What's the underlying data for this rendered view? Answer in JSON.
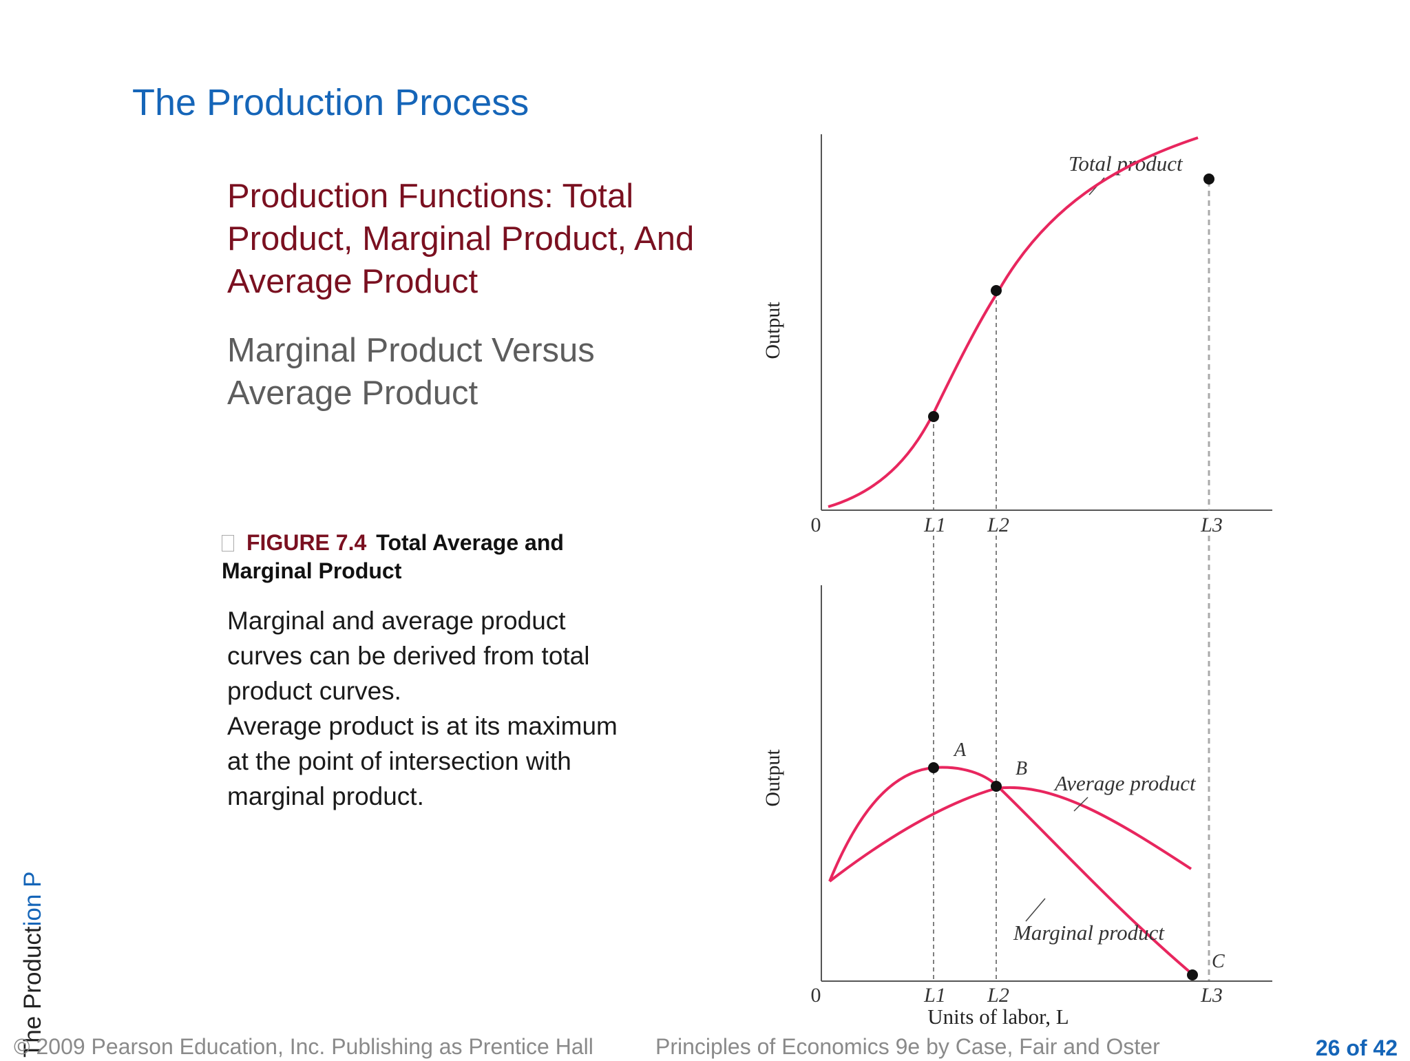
{
  "slide": {
    "title": "The Production Process",
    "heading": "Production Functions:  Total Product, Marginal Product, And Average Product",
    "subheading": "Marginal Product Versus Average Product",
    "caption": {
      "figure_label": "FIGURE 7.4",
      "figure_title": "Total Average and Marginal Product"
    },
    "body_lines": [
      "Marginal and average product",
      "curves can be derived from total",
      "product curves.",
      "Average product is at its maximum",
      "at the point of intersection with",
      "marginal product."
    ],
    "side_text": {
      "main": "The Product",
      "accent": "ion P"
    },
    "footer": {
      "copyright": "© 2009 Pearson Education, Inc. Publishing as Prentice Hall",
      "book": "Principles of Economics 9e by Case, Fair and Oster",
      "page": "26 of 42"
    }
  },
  "chart_data": [
    {
      "type": "line",
      "ylabel": "Output",
      "x_ticks": [
        "0",
        "L1",
        "L2",
        "L3"
      ],
      "series": [
        {
          "name": "Total product",
          "points": [
            [
              0,
              0.01
            ],
            [
              0.1,
              0.05
            ],
            [
              0.2,
              0.13
            ],
            [
              0.3,
              0.3
            ],
            [
              0.4,
              0.5
            ],
            [
              0.5,
              0.64
            ],
            [
              0.6,
              0.78
            ],
            [
              0.7,
              0.88
            ],
            [
              0.8,
              0.95
            ],
            [
              0.9,
              0.985
            ],
            [
              1.0,
              0.99
            ]
          ]
        }
      ],
      "labeled_points": [
        {
          "x": 0.28,
          "y": 0.28
        },
        {
          "x": 0.45,
          "y": 0.59
        },
        {
          "x": 1.0,
          "y": 0.99
        }
      ],
      "color": "#e8265e"
    },
    {
      "type": "line",
      "ylabel": "Output",
      "xlabel": "Units of labor, L",
      "x_ticks": [
        "0",
        "L1",
        "L2",
        "L3"
      ],
      "series": [
        {
          "name": "Marginal product",
          "points": [
            [
              0.02,
              0.37
            ],
            [
              0.1,
              0.6
            ],
            [
              0.2,
              0.75
            ],
            [
              0.28,
              0.78
            ],
            [
              0.35,
              0.76
            ],
            [
              0.45,
              0.68
            ],
            [
              0.55,
              0.56
            ],
            [
              0.7,
              0.36
            ],
            [
              0.85,
              0.17
            ],
            [
              1.0,
              0.02
            ]
          ]
        },
        {
          "name": "Average product",
          "points": [
            [
              0.02,
              0.35
            ],
            [
              0.15,
              0.51
            ],
            [
              0.3,
              0.62
            ],
            [
              0.45,
              0.68
            ],
            [
              0.55,
              0.67
            ],
            [
              0.7,
              0.59
            ],
            [
              0.85,
              0.48
            ],
            [
              1.0,
              0.37
            ]
          ]
        }
      ],
      "labeled_points": [
        {
          "label": "A",
          "x": 0.28,
          "y": 0.78
        },
        {
          "label": "B",
          "x": 0.45,
          "y": 0.68
        },
        {
          "label": "C",
          "x": 1.0,
          "y": 0.02
        }
      ],
      "color": "#e8265e"
    }
  ]
}
